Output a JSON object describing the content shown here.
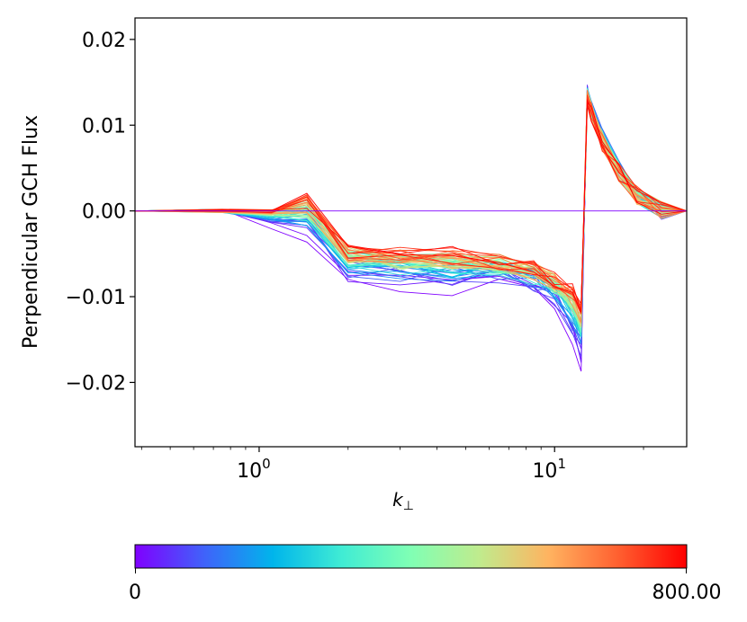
{
  "chart_data": {
    "type": "line",
    "title": "",
    "xlabel": "k",
    "xlabel_subscript": "⊥",
    "ylabel": "Perpendicular GCH Flux",
    "xscale": "log",
    "xlim": [
      0.38,
      28
    ],
    "ylim": [
      -0.0275,
      0.0225
    ],
    "x_ticks": [
      {
        "value": 1,
        "base": "10",
        "exp": "0"
      },
      {
        "value": 10,
        "base": "10",
        "exp": "1"
      }
    ],
    "y_ticks": [
      {
        "value": 0.02,
        "label": "0.02"
      },
      {
        "value": 0.01,
        "label": "0.01"
      },
      {
        "value": 0.0,
        "label": "0.00"
      },
      {
        "value": -0.01,
        "label": "−0.01"
      },
      {
        "value": -0.02,
        "label": "−0.02"
      }
    ],
    "k_grid": [
      0.38,
      0.75,
      1.1,
      1.45,
      2.0,
      3.0,
      4.5,
      6.5,
      8.5,
      10.0,
      11.5,
      12.3,
      12.9,
      13.3,
      14.5,
      16.5,
      19.0,
      23.0,
      28.0
    ],
    "series_count": 60,
    "series_param_range": [
      0,
      800
    ],
    "series_colormap": "rainbow",
    "representative_profile": {
      "early": [
        0,
        0.0,
        -0.002,
        -0.003,
        -0.0085,
        -0.0095,
        -0.0095,
        -0.0085,
        -0.0095,
        -0.0115,
        -0.016,
        -0.019,
        0.014,
        0.012,
        0.009,
        0.005,
        0.002,
        0.0,
        0.0
      ],
      "late": [
        0,
        0.0,
        0.0,
        0.001,
        -0.0045,
        -0.005,
        -0.0052,
        -0.0057,
        -0.0067,
        -0.0078,
        -0.0095,
        -0.0115,
        0.013,
        0.0115,
        0.008,
        0.0045,
        0.0018,
        0.0002,
        0.0
      ]
    },
    "colorbar": {
      "min_label": "0",
      "max_label": "800.00",
      "min": 0,
      "max": 800
    }
  }
}
